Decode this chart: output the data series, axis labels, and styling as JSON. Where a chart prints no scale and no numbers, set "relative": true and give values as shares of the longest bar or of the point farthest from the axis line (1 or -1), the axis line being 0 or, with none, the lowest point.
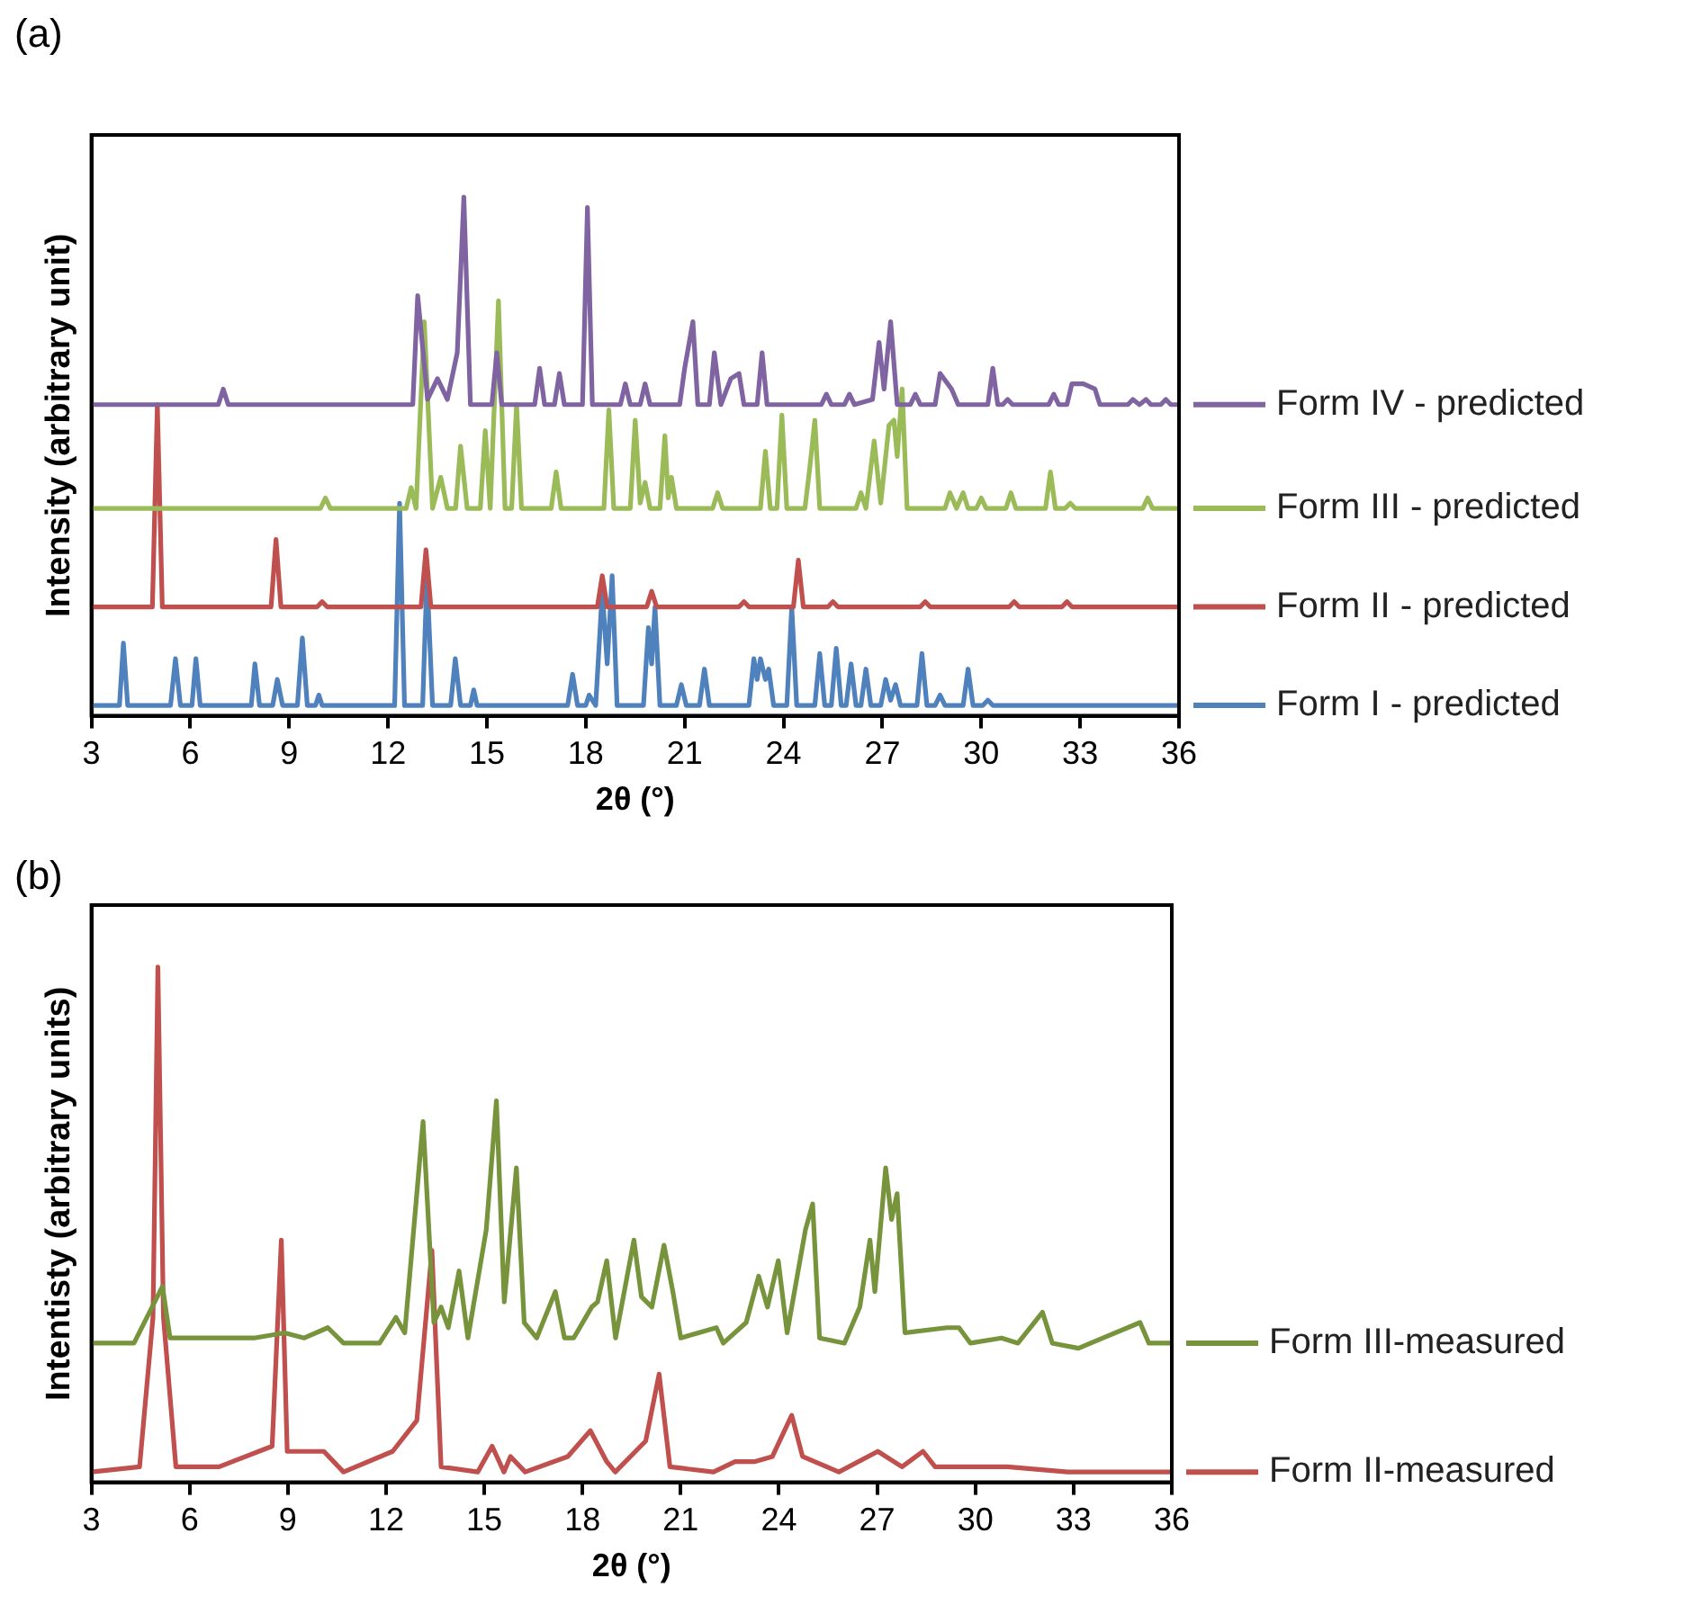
{
  "chart_data": [
    {
      "type": "line",
      "relative": true,
      "annotations": [
        "(a)"
      ],
      "xlabel": "2θ (°)",
      "ylabel": "Intensity (arbitrary unit)",
      "xlim": [
        3,
        36
      ],
      "xticks": [
        3,
        6,
        9,
        12,
        15,
        18,
        21,
        24,
        27,
        30,
        33,
        36
      ],
      "legend": "right",
      "series": [
        {
          "name": "Form IV - predicted",
          "color": "#8064a2",
          "x": [
            3,
            6.85,
            7.0,
            7.15,
            12.75,
            12.9,
            13.2,
            13.5,
            13.8,
            14.1,
            14.3,
            14.5,
            15.15,
            15.3,
            15.45,
            16.45,
            16.6,
            16.75,
            17.05,
            17.2,
            17.35,
            17.9,
            18.05,
            18.2,
            19.05,
            19.2,
            19.35,
            19.65,
            19.8,
            19.95,
            20.85,
            21.0,
            21.25,
            21.4,
            21.75,
            21.9,
            22.1,
            22.4,
            22.65,
            22.8,
            23.2,
            23.35,
            23.5,
            25.15,
            25.3,
            25.45,
            25.85,
            26.0,
            26.15,
            26.7,
            26.9,
            27.05,
            27.25,
            27.45,
            27.85,
            28.0,
            28.15,
            28.6,
            28.75,
            29.1,
            29.3,
            30.2,
            30.35,
            30.5,
            30.65,
            30.8,
            30.95,
            32.05,
            32.2,
            32.35,
            32.6,
            32.75,
            33.1,
            33.45,
            33.6,
            34.45,
            34.6,
            34.8,
            35.0,
            35.15,
            35.45,
            35.6,
            35.75,
            36
          ],
          "values": [
            0.6,
            0.6,
            0.63,
            0.6,
            0.6,
            0.81,
            0.61,
            0.65,
            0.61,
            0.7,
            1,
            0.6,
            0.6,
            0.7,
            0.6,
            0.6,
            0.67,
            0.6,
            0.6,
            0.66,
            0.6,
            0.6,
            0.98,
            0.6,
            0.6,
            0.64,
            0.6,
            0.6,
            0.64,
            0.6,
            0.6,
            0.67,
            0.76,
            0.6,
            0.6,
            0.7,
            0.6,
            0.65,
            0.66,
            0.6,
            0.6,
            0.7,
            0.6,
            0.6,
            0.62,
            0.6,
            0.6,
            0.62,
            0.6,
            0.61,
            0.72,
            0.63,
            0.76,
            0.6,
            0.6,
            0.62,
            0.6,
            0.6,
            0.66,
            0.63,
            0.6,
            0.6,
            0.67,
            0.6,
            0.6,
            0.61,
            0.6,
            0.6,
            0.62,
            0.6,
            0.6,
            0.64,
            0.64,
            0.63,
            0.6,
            0.6,
            0.61,
            0.6,
            0.61,
            0.6,
            0.6,
            0.61,
            0.6,
            0.6
          ]
        },
        {
          "name": "Form III - predicted",
          "color": "#9bbb59",
          "x": [
            3,
            9.95,
            10.1,
            10.25,
            12.55,
            12.7,
            12.85,
            13.1,
            13.35,
            13.6,
            13.8,
            14.05,
            14.2,
            14.4,
            14.8,
            14.95,
            15.1,
            15.35,
            15.55,
            15.75,
            15.9,
            16.05,
            16.95,
            17.1,
            17.25,
            18.55,
            18.7,
            18.85,
            19.35,
            19.5,
            19.65,
            19.8,
            19.95,
            20.25,
            20.4,
            20.5,
            20.6,
            20.75,
            21.85,
            22.0,
            22.15,
            23.3,
            23.45,
            23.6,
            23.8,
            23.95,
            24.1,
            24.65,
            24.8,
            24.95,
            25.1,
            26.2,
            26.35,
            26.5,
            26.75,
            26.95,
            27.2,
            27.35,
            27.45,
            27.6,
            27.75,
            28.9,
            29.05,
            29.25,
            29.45,
            29.6,
            29.85,
            30.0,
            30.15,
            30.75,
            30.9,
            31.05,
            31.95,
            32.1,
            32.25,
            32.55,
            32.7,
            32.85,
            34.9,
            35.05,
            35.2,
            36
          ],
          "values": [
            0.4,
            0.4,
            0.42,
            0.4,
            0.4,
            0.44,
            0.4,
            0.76,
            0.4,
            0.46,
            0.4,
            0.4,
            0.52,
            0.4,
            0.4,
            0.55,
            0.4,
            0.8,
            0.4,
            0.4,
            0.6,
            0.4,
            0.4,
            0.47,
            0.4,
            0.4,
            0.59,
            0.4,
            0.4,
            0.57,
            0.41,
            0.45,
            0.4,
            0.4,
            0.54,
            0.42,
            0.46,
            0.4,
            0.4,
            0.43,
            0.4,
            0.4,
            0.51,
            0.4,
            0.4,
            0.58,
            0.4,
            0.4,
            0.48,
            0.57,
            0.4,
            0.4,
            0.43,
            0.4,
            0.53,
            0.41,
            0.56,
            0.57,
            0.5,
            0.63,
            0.4,
            0.4,
            0.43,
            0.4,
            0.43,
            0.4,
            0.4,
            0.42,
            0.4,
            0.4,
            0.43,
            0.4,
            0.4,
            0.47,
            0.4,
            0.4,
            0.41,
            0.4,
            0.4,
            0.42,
            0.4,
            0.4
          ]
        },
        {
          "name": "Form II - predicted",
          "color": "#c0504d",
          "x": [
            3,
            4.85,
            5.0,
            5.15,
            8.45,
            8.6,
            8.75,
            9.85,
            10.0,
            10.15,
            13.0,
            13.15,
            13.3,
            18.35,
            18.5,
            18.65,
            19.85,
            20.0,
            20.15,
            22.65,
            22.8,
            22.95,
            24.3,
            24.45,
            24.6,
            25.35,
            25.5,
            25.65,
            28.15,
            28.3,
            28.45,
            30.85,
            31.0,
            31.15,
            32.45,
            32.6,
            32.75,
            36
          ],
          "values": [
            0.21,
            0.21,
            0.6,
            0.21,
            0.21,
            0.34,
            0.21,
            0.21,
            0.22,
            0.21,
            0.21,
            0.32,
            0.21,
            0.21,
            0.27,
            0.21,
            0.21,
            0.24,
            0.21,
            0.21,
            0.22,
            0.21,
            0.21,
            0.3,
            0.21,
            0.21,
            0.22,
            0.21,
            0.21,
            0.22,
            0.21,
            0.21,
            0.22,
            0.21,
            0.21,
            0.22,
            0.21,
            0.21
          ]
        },
        {
          "name": "Form I - predicted",
          "color": "#4f81bd",
          "x": [
            3,
            3.85,
            3.97,
            4.1,
            5.4,
            5.55,
            5.7,
            6.05,
            6.17,
            6.3,
            7.85,
            7.96,
            8.1,
            8.5,
            8.64,
            8.8,
            9.25,
            9.4,
            9.55,
            9.8,
            9.9,
            10.0,
            12.2,
            12.35,
            12.5,
            13.05,
            13.18,
            13.35,
            13.9,
            14.04,
            14.2,
            14.5,
            14.6,
            14.7,
            17.45,
            17.6,
            17.75,
            18.0,
            18.1,
            18.3,
            18.5,
            18.65,
            18.8,
            18.95,
            19.75,
            19.9,
            20.0,
            20.1,
            20.25,
            20.75,
            20.9,
            21.05,
            21.45,
            21.6,
            21.75,
            22.95,
            23.1,
            23.2,
            23.3,
            23.45,
            23.55,
            23.7,
            24.1,
            24.25,
            24.4,
            24.95,
            25.1,
            25.25,
            25.45,
            25.6,
            25.75,
            25.9,
            26.05,
            26.2,
            26.35,
            26.5,
            26.65,
            26.95,
            27.1,
            27.25,
            27.4,
            27.55,
            28.05,
            28.2,
            28.35,
            28.6,
            28.75,
            28.9,
            29.45,
            29.6,
            29.75,
            30.05,
            30.2,
            30.35,
            36
          ],
          "values": [
            0.02,
            0.02,
            0.14,
            0.02,
            0.02,
            0.11,
            0.02,
            0.02,
            0.11,
            0.02,
            0.02,
            0.1,
            0.02,
            0.02,
            0.07,
            0.02,
            0.02,
            0.15,
            0.02,
            0.02,
            0.04,
            0.02,
            0.02,
            0.41,
            0.02,
            0.02,
            0.27,
            0.02,
            0.02,
            0.11,
            0.02,
            0.02,
            0.05,
            0.02,
            0.02,
            0.08,
            0.02,
            0.02,
            0.04,
            0.02,
            0.24,
            0.1,
            0.27,
            0.02,
            0.02,
            0.17,
            0.1,
            0.21,
            0.02,
            0.02,
            0.06,
            0.02,
            0.02,
            0.09,
            0.02,
            0.02,
            0.11,
            0.07,
            0.11,
            0.07,
            0.09,
            0.02,
            0.02,
            0.21,
            0.02,
            0.02,
            0.12,
            0.02,
            0.02,
            0.13,
            0.02,
            0.02,
            0.1,
            0.02,
            0.02,
            0.09,
            0.02,
            0.02,
            0.07,
            0.03,
            0.06,
            0.02,
            0.02,
            0.12,
            0.02,
            0.02,
            0.04,
            0.02,
            0.02,
            0.09,
            0.02,
            0.02,
            0.03,
            0.02,
            0.02
          ]
        }
      ]
    },
    {
      "type": "line",
      "relative": true,
      "annotations": [
        "(b)"
      ],
      "xlabel": "2θ (°)",
      "ylabel": "Intentisty (arbitrary units)",
      "xlim": [
        3,
        36
      ],
      "xticks": [
        3,
        6,
        9,
        12,
        15,
        18,
        21,
        24,
        27,
        30,
        33,
        36
      ],
      "legend": "right",
      "series": [
        {
          "name": "Form III-measured",
          "color": "#77933c",
          "x": [
            3,
            4.3,
            5.17,
            5.4,
            7.97,
            8.9,
            9.5,
            10.22,
            10.7,
            11.8,
            12.3,
            12.57,
            13.13,
            13.46,
            13.68,
            13.9,
            14.23,
            14.5,
            15.06,
            15.37,
            15.61,
            15.98,
            16.22,
            16.6,
            17.17,
            17.45,
            17.73,
            18.28,
            18.46,
            18.74,
            19.01,
            19.57,
            19.8,
            20.12,
            20.49,
            20.76,
            21.0,
            22.09,
            22.3,
            23.0,
            23.38,
            23.65,
            23.98,
            24.25,
            24.81,
            25.03,
            25.24,
            26.0,
            26.47,
            26.78,
            26.93,
            27.26,
            27.44,
            27.61,
            27.85,
            29.13,
            29.5,
            29.85,
            30.8,
            31.3,
            32.05,
            32.35,
            33.15,
            33.9,
            35.03,
            35.3,
            36
          ],
          "values": [
            0.27,
            0.27,
            0.38,
            0.28,
            0.28,
            0.29,
            0.28,
            0.3,
            0.27,
            0.27,
            0.32,
            0.29,
            0.7,
            0.31,
            0.34,
            0.3,
            0.41,
            0.28,
            0.49,
            0.74,
            0.35,
            0.61,
            0.31,
            0.28,
            0.37,
            0.28,
            0.28,
            0.34,
            0.35,
            0.43,
            0.28,
            0.47,
            0.36,
            0.34,
            0.46,
            0.37,
            0.28,
            0.3,
            0.27,
            0.31,
            0.4,
            0.34,
            0.43,
            0.29,
            0.49,
            0.54,
            0.28,
            0.27,
            0.34,
            0.47,
            0.37,
            0.61,
            0.51,
            0.56,
            0.29,
            0.3,
            0.3,
            0.27,
            0.28,
            0.27,
            0.33,
            0.27,
            0.26,
            0.28,
            0.31,
            0.27,
            0.27
          ]
        },
        {
          "name": "Form II-measured",
          "color": "#c0504d",
          "x": [
            3,
            4.47,
            4.88,
            5.03,
            5.2,
            5.58,
            6.9,
            8.52,
            8.8,
            8.98,
            10.1,
            10.7,
            12.2,
            12.94,
            13.4,
            13.68,
            14.8,
            15.24,
            15.6,
            15.8,
            16.25,
            17.55,
            18.24,
            18.74,
            19.0,
            19.93,
            20.34,
            20.67,
            22.0,
            22.66,
            23.25,
            23.8,
            24.39,
            24.72,
            25.83,
            27.02,
            27.76,
            28.4,
            28.77,
            30.98,
            32.82,
            36
          ],
          "values": [
            0.02,
            0.03,
            0.32,
            1,
            0.32,
            0.03,
            0.03,
            0.07,
            0.47,
            0.06,
            0.06,
            0.02,
            0.06,
            0.12,
            0.45,
            0.03,
            0.02,
            0.07,
            0.02,
            0.05,
            0.02,
            0.05,
            0.1,
            0.04,
            0.02,
            0.08,
            0.21,
            0.03,
            0.02,
            0.04,
            0.04,
            0.05,
            0.13,
            0.05,
            0.02,
            0.06,
            0.03,
            0.06,
            0.03,
            0.03,
            0.02,
            0.02
          ]
        }
      ]
    }
  ]
}
